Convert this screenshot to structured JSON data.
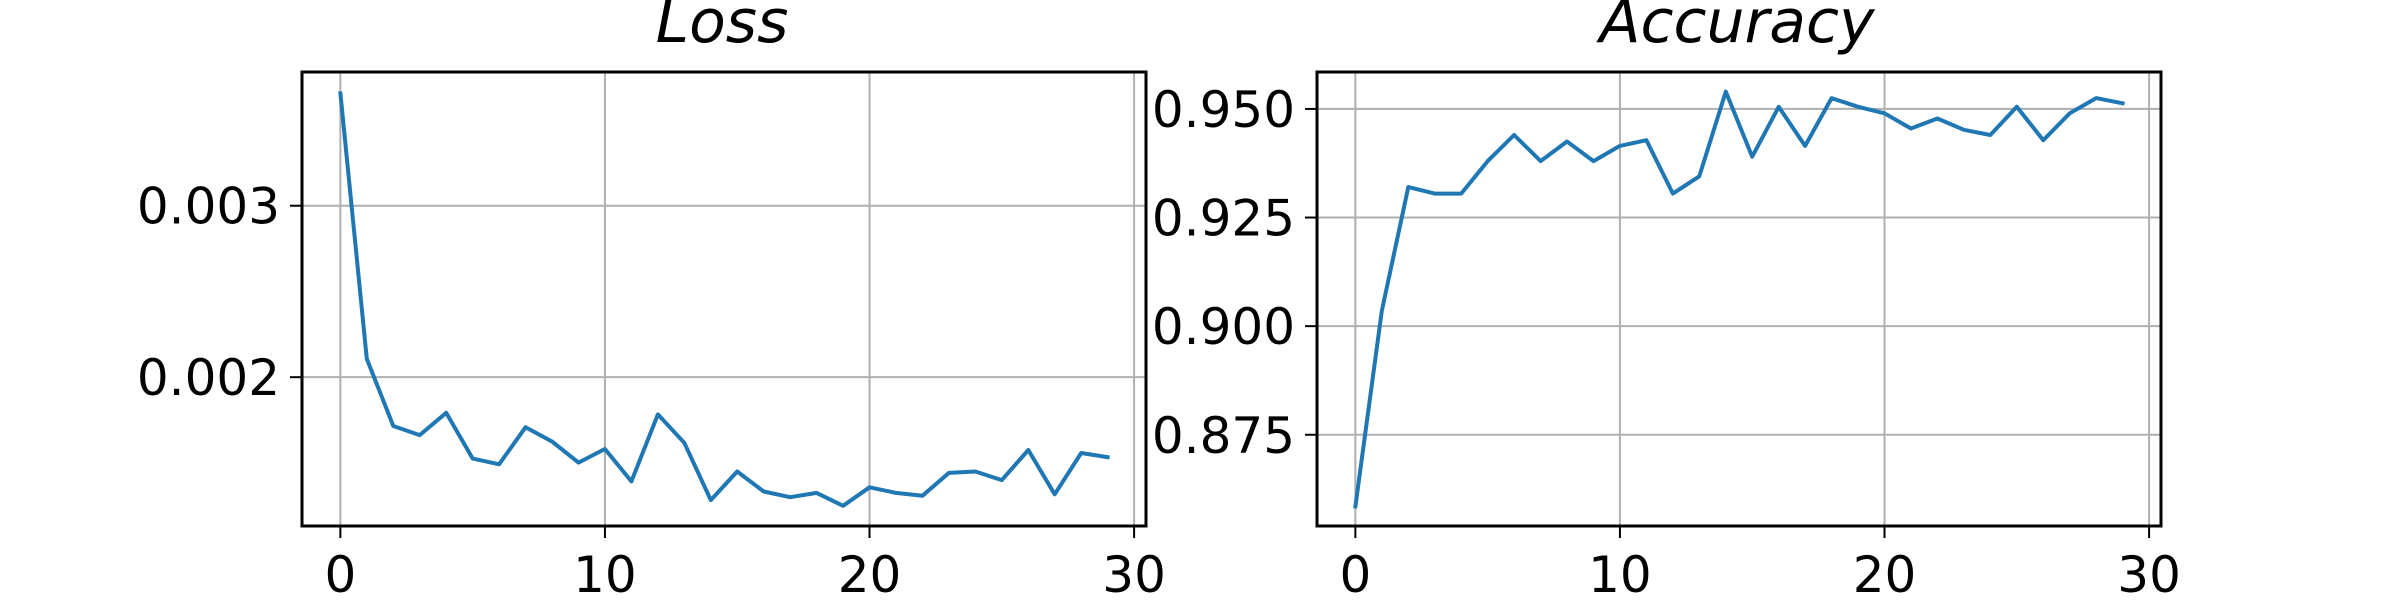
{
  "colors": {
    "line": "#1f77b4",
    "grid": "#b0b0b0",
    "axes": "#000000",
    "background": "#ffffff"
  },
  "chart_data": [
    {
      "type": "line",
      "title": "Loss",
      "xlabel": "",
      "ylabel": "",
      "grid": true,
      "xlim": [
        -1.45,
        30.45
      ],
      "ylim": [
        0.001132,
        0.00378
      ],
      "xticks": [
        0,
        10,
        20,
        30
      ],
      "xtick_labels": [
        "0",
        "10",
        "20",
        "30"
      ],
      "yticks": [
        0.002,
        0.003
      ],
      "ytick_labels": [
        "0.002",
        "0.003"
      ],
      "series": [
        {
          "x": [
            0,
            1,
            2,
            3,
            4,
            5,
            6,
            7,
            8,
            9,
            10,
            11,
            12,
            13,
            14,
            15,
            16,
            17,
            18,
            19,
            20,
            21,
            22,
            23,
            24,
            25,
            26,
            27,
            28,
            29
          ],
          "values": [
            0.003655,
            0.002107,
            0.001715,
            0.001662,
            0.001792,
            0.001525,
            0.001492,
            0.001708,
            0.001625,
            0.001502,
            0.001581,
            0.001392,
            0.001783,
            0.001617,
            0.001283,
            0.00145,
            0.001333,
            0.0013,
            0.001325,
            0.00125,
            0.001358,
            0.001325,
            0.001308,
            0.001442,
            0.00145,
            0.0014,
            0.001575,
            0.001317,
            0.001558,
            0.001533
          ]
        }
      ]
    },
    {
      "type": "line",
      "title": "Accuracy",
      "xlabel": "",
      "ylabel": "",
      "grid": true,
      "xlim": [
        -1.45,
        30.45
      ],
      "ylim": [
        0.854,
        0.9585
      ],
      "xticks": [
        0,
        10,
        20,
        30
      ],
      "xtick_labels": [
        "0",
        "10",
        "20",
        "30"
      ],
      "yticks": [
        0.875,
        0.9,
        0.925,
        0.95
      ],
      "ytick_labels": [
        "0.875",
        "0.900",
        "0.925",
        "0.950"
      ],
      "series": [
        {
          "x": [
            0,
            1,
            2,
            3,
            4,
            5,
            6,
            7,
            8,
            9,
            10,
            11,
            12,
            13,
            14,
            15,
            16,
            17,
            18,
            19,
            20,
            21,
            22,
            23,
            24,
            25,
            26,
            27,
            28,
            29
          ],
          "values": [
            0.8585,
            0.9035,
            0.932,
            0.9305,
            0.9305,
            0.938,
            0.944,
            0.938,
            0.9425,
            0.938,
            0.9415,
            0.9428,
            0.9305,
            0.9345,
            0.954,
            0.939,
            0.9505,
            0.9415,
            0.9525,
            0.9505,
            0.949,
            0.9455,
            0.9478,
            0.9452,
            0.944,
            0.9505,
            0.9428,
            0.949,
            0.9525,
            0.9513
          ]
        }
      ]
    }
  ]
}
